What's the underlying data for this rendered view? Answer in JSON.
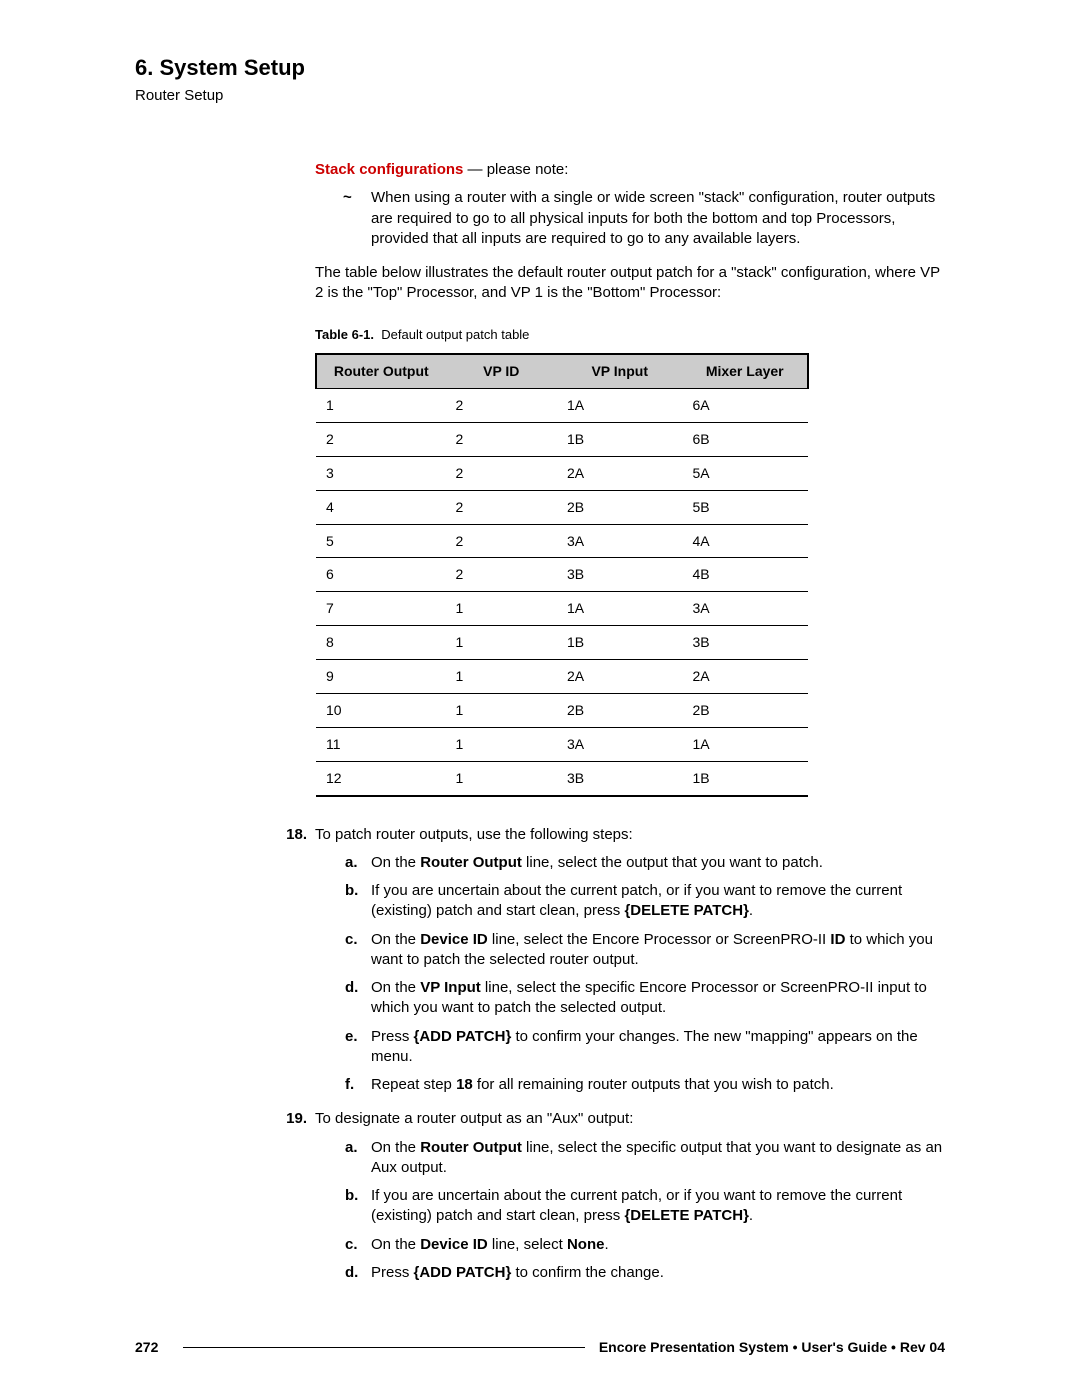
{
  "header": {
    "chapter": "6.  System Setup",
    "section": "Router Setup"
  },
  "stack": {
    "label": "Stack configurations",
    "note_suffix": " — please note:",
    "bullet": "When using a router with a single or wide screen \"stack\" configuration, router outputs are required to go to all physical inputs for both the bottom and top Processors, provided that all inputs are required to go to any available layers."
  },
  "intro_para": "The table below illustrates the default router output patch for a \"stack\" configuration, where VP 2 is the \"Top\" Processor, and VP 1 is the \"Bottom\" Processor:",
  "table": {
    "caption_label": "Table 6-1.",
    "caption_text": "Default output patch table",
    "columns": [
      "Router Output",
      "VP ID",
      "VP Input",
      "Mixer Layer"
    ],
    "rows": [
      [
        "1",
        "2",
        "1A",
        "6A"
      ],
      [
        "2",
        "2",
        "1B",
        "6B"
      ],
      [
        "3",
        "2",
        "2A",
        "5A"
      ],
      [
        "4",
        "2",
        "2B",
        "5B"
      ],
      [
        "5",
        "2",
        "3A",
        "4A"
      ],
      [
        "6",
        "2",
        "3B",
        "4B"
      ],
      [
        "7",
        "1",
        "1A",
        "3A"
      ],
      [
        "8",
        "1",
        "1B",
        "3B"
      ],
      [
        "9",
        "1",
        "2A",
        "2A"
      ],
      [
        "10",
        "1",
        "2B",
        "2B"
      ],
      [
        "11",
        "1",
        "3A",
        "1A"
      ],
      [
        "12",
        "1",
        "3B",
        "1B"
      ]
    ],
    "header_bg": "#cccccc",
    "border_color": "#000000",
    "font_size": 14
  },
  "steps": {
    "s18": {
      "num": "18.",
      "text": "To patch router outputs, use the following steps:",
      "subs": {
        "a": {
          "pre": "On the ",
          "b1": "Router Output",
          "mid": " line, select the output that you want to patch.",
          "post": ""
        },
        "b": {
          "pre": "If you are uncertain about the current patch, or if you want to remove the current (existing) patch and start clean, press ",
          "b1": "{DELETE PATCH}",
          "mid": ".",
          "post": ""
        },
        "c": {
          "pre": "On the ",
          "b1": "Device ID",
          "mid": " line, select the Encore Processor or ScreenPRO-II ",
          "b2": "ID",
          "post": " to which you want to patch the selected router output."
        },
        "d": {
          "pre": "On the ",
          "b1": "VP Input",
          "mid": " line, select the specific Encore Processor or ScreenPRO-II input to which you want to patch the selected output.",
          "post": ""
        },
        "e": {
          "pre": "Press ",
          "b1": "{ADD PATCH}",
          "mid": " to confirm your changes.  The new \"mapping\" appears on the menu.",
          "post": ""
        },
        "f": {
          "pre": "Repeat step ",
          "b1": "18",
          "mid": " for all remaining router outputs that you wish to patch.",
          "post": ""
        }
      }
    },
    "s19": {
      "num": "19.",
      "text": "To designate a router output as an \"Aux\" output:",
      "subs": {
        "a": {
          "pre": "On the ",
          "b1": "Router Output",
          "mid": " line, select the specific output that you want to designate as an Aux output.",
          "post": ""
        },
        "b": {
          "pre": "If you are uncertain about the current patch, or if you want to remove the current (existing) patch and start clean, press ",
          "b1": "{DELETE PATCH}",
          "mid": ".",
          "post": ""
        },
        "c": {
          "pre": "On the ",
          "b1": "Device ID",
          "mid": " line, select ",
          "b2": "None",
          "post": "."
        },
        "d": {
          "pre": "Press ",
          "b1": "{ADD PATCH}",
          "mid": " to confirm the change.",
          "post": ""
        }
      }
    }
  },
  "footer": {
    "page": "272",
    "text": "Encore Presentation System  •  User's Guide  •  Rev 04"
  }
}
